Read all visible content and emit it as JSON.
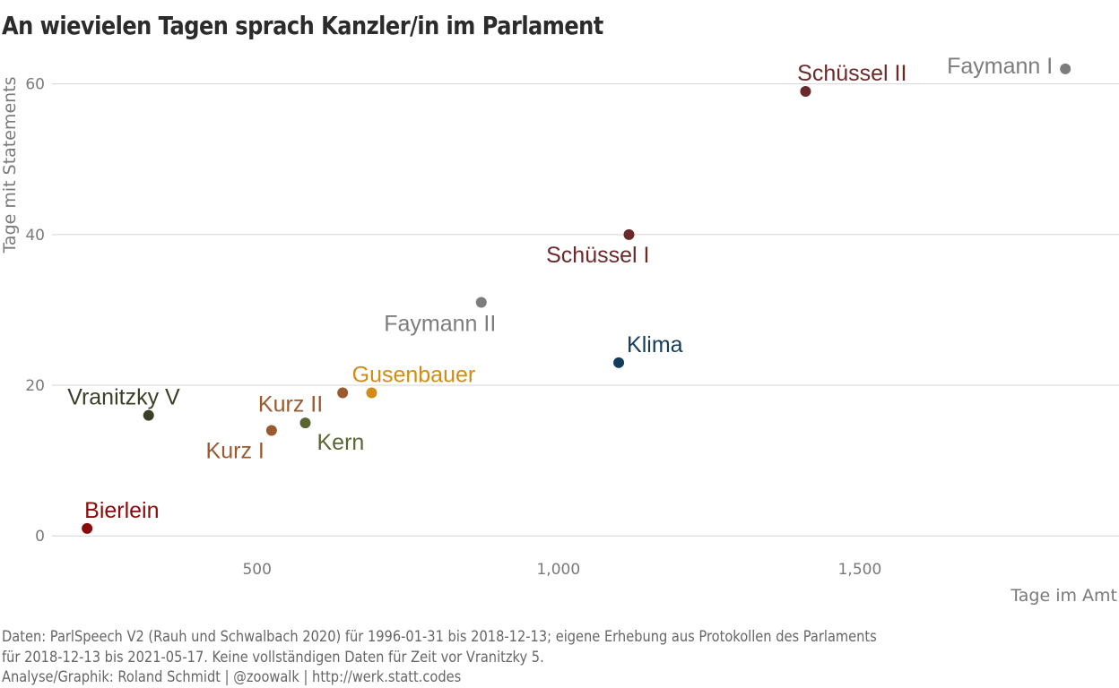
{
  "chart_data": {
    "type": "scatter",
    "title": "An wievielen Tagen sprach Kanzler/in im Parlament",
    "xlabel": "Tage im Amt",
    "ylabel": "Tage mit Statements",
    "xlim": [
      130,
      1930
    ],
    "ylim": [
      -3.3,
      64
    ],
    "xticks": [
      500,
      1000,
      1500
    ],
    "xtick_labels": [
      "500",
      "1,000",
      "1,500"
    ],
    "yticks": [
      0,
      20,
      40,
      60
    ],
    "ytick_labels": [
      "0",
      "20",
      "40",
      "60"
    ],
    "grid": "horizontal",
    "legend": "none",
    "points": [
      {
        "label": "Bierlein",
        "x": 218,
        "y": 1,
        "color": "#8b0a0a"
      },
      {
        "label": "Vranitzky V",
        "x": 320,
        "y": 16,
        "color": "#3b3f27"
      },
      {
        "label": "Kurz I",
        "x": 524,
        "y": 14,
        "color": "#9a5a2e"
      },
      {
        "label": "Kern",
        "x": 580,
        "y": 15,
        "color": "#5a6632"
      },
      {
        "label": "Kurz II",
        "x": 642,
        "y": 19,
        "color": "#9a5a2e"
      },
      {
        "label": "Gusenbauer",
        "x": 690,
        "y": 19,
        "color": "#d08c14"
      },
      {
        "label": "Faymann II",
        "x": 872,
        "y": 31,
        "color": "#7d7d7d"
      },
      {
        "label": "Klima",
        "x": 1100,
        "y": 23,
        "color": "#143c5a"
      },
      {
        "label": "Schüssel I",
        "x": 1117,
        "y": 40,
        "color": "#6b2a2a"
      },
      {
        "label": "Schüssel II",
        "x": 1410,
        "y": 59,
        "color": "#6b2a2a"
      },
      {
        "label": "Faymann I",
        "x": 1841,
        "y": 62,
        "color": "#7d7d7d"
      }
    ]
  },
  "caption": {
    "line1": "Daten: ParlSpeech V2 (Rauh und Schwalbach 2020) für 1996-01-31 bis 2018-12-13; eigene Erhebung aus Protokollen des Parlaments",
    "line2": "für 2018-12-13 bis 2021-05-17. Keine vollständigen Daten für Zeit vor Vranitzky 5.",
    "line3": "Analyse/Graphik: Roland Schmidt | @zoowalk | http://werk.statt.codes"
  }
}
